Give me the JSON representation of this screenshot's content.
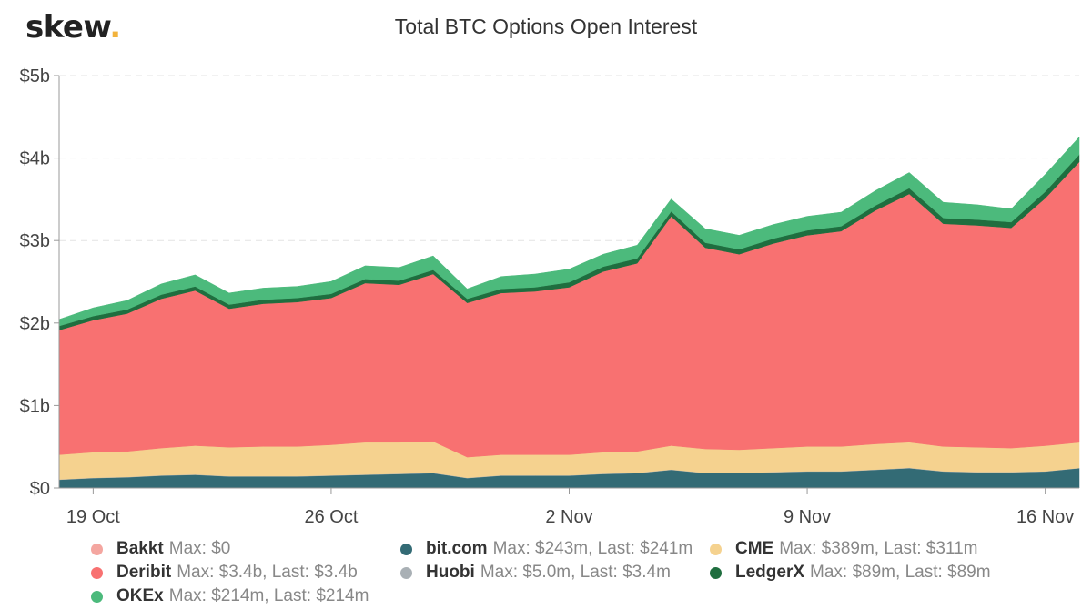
{
  "brand": {
    "name": "skew",
    "dot": "."
  },
  "chart_data": {
    "type": "area",
    "stacked": true,
    "title": "Total BTC Options Open Interest",
    "xlabel": "",
    "ylabel": "",
    "x_start": "2020-10-18",
    "x_ticks": [
      {
        "date": "2020-10-19",
        "label": "19 Oct"
      },
      {
        "date": "2020-10-26",
        "label": "26 Oct"
      },
      {
        "date": "2020-11-02",
        "label": "2 Nov"
      },
      {
        "date": "2020-11-09",
        "label": "9 Nov"
      },
      {
        "date": "2020-11-16",
        "label": "16 Nov"
      }
    ],
    "y_ticks": [
      {
        "value": 0,
        "label": "$0"
      },
      {
        "value": 1,
        "label": "$1b"
      },
      {
        "value": 2,
        "label": "$2b"
      },
      {
        "value": 3,
        "label": "$3b"
      },
      {
        "value": 4,
        "label": "$4b"
      },
      {
        "value": 5,
        "label": "$5b"
      }
    ],
    "ylim": [
      0,
      5
    ],
    "y_unit": "$b",
    "grid": "horizontal dashed",
    "legend_position": "bottom",
    "dates": [
      "2020-10-18",
      "2020-10-19",
      "2020-10-20",
      "2020-10-21",
      "2020-10-22",
      "2020-10-23",
      "2020-10-24",
      "2020-10-25",
      "2020-10-26",
      "2020-10-27",
      "2020-10-28",
      "2020-10-29",
      "2020-10-30",
      "2020-10-31",
      "2020-11-01",
      "2020-11-02",
      "2020-11-03",
      "2020-11-04",
      "2020-11-05",
      "2020-11-06",
      "2020-11-07",
      "2020-11-08",
      "2020-11-09",
      "2020-11-10",
      "2020-11-11",
      "2020-11-12",
      "2020-11-13",
      "2020-11-14",
      "2020-11-15",
      "2020-11-16",
      "2020-11-17"
    ],
    "series": [
      {
        "name": "Bakkt",
        "color": "#f4a6a0",
        "max": "$0",
        "last": "",
        "values": [
          0,
          0,
          0,
          0,
          0,
          0,
          0,
          0,
          0,
          0,
          0,
          0,
          0,
          0,
          0,
          0,
          0,
          0,
          0,
          0,
          0,
          0,
          0,
          0,
          0,
          0,
          0,
          0,
          0,
          0,
          0
        ]
      },
      {
        "name": "bit.com",
        "color": "#336b75",
        "max": "$243m",
        "last": "$241m",
        "values": [
          0.1,
          0.12,
          0.13,
          0.15,
          0.16,
          0.14,
          0.14,
          0.14,
          0.15,
          0.16,
          0.17,
          0.18,
          0.12,
          0.15,
          0.15,
          0.15,
          0.17,
          0.18,
          0.22,
          0.18,
          0.18,
          0.19,
          0.2,
          0.2,
          0.22,
          0.24,
          0.2,
          0.19,
          0.19,
          0.2,
          0.24
        ]
      },
      {
        "name": "Huobi",
        "color": "#a9b0b5",
        "max": "$5.0m",
        "last": "$3.4m",
        "values": [
          0.004,
          0.004,
          0.004,
          0.004,
          0.004,
          0.004,
          0.004,
          0.004,
          0.004,
          0.004,
          0.004,
          0.004,
          0.004,
          0.004,
          0.004,
          0.004,
          0.004,
          0.004,
          0.004,
          0.004,
          0.004,
          0.004,
          0.004,
          0.004,
          0.004,
          0.005,
          0.004,
          0.004,
          0.004,
          0.003,
          0.003
        ]
      },
      {
        "name": "CME",
        "color": "#f5d28f",
        "max": "$389m",
        "last": "$311m",
        "values": [
          0.3,
          0.31,
          0.31,
          0.33,
          0.35,
          0.35,
          0.36,
          0.36,
          0.37,
          0.39,
          0.38,
          0.38,
          0.25,
          0.25,
          0.25,
          0.25,
          0.26,
          0.26,
          0.29,
          0.29,
          0.28,
          0.29,
          0.3,
          0.3,
          0.31,
          0.31,
          0.3,
          0.3,
          0.29,
          0.31,
          0.31
        ]
      },
      {
        "name": "Deribit",
        "color": "#f87171",
        "max": "$3.4b",
        "last": "$3.4b",
        "values": [
          1.51,
          1.6,
          1.67,
          1.81,
          1.88,
          1.68,
          1.73,
          1.75,
          1.78,
          1.93,
          1.91,
          2.03,
          1.87,
          1.96,
          1.98,
          2.03,
          2.19,
          2.28,
          2.78,
          2.44,
          2.37,
          2.48,
          2.56,
          2.61,
          2.83,
          3.01,
          2.7,
          2.69,
          2.67,
          3.0,
          3.4
        ]
      },
      {
        "name": "LedgerX",
        "color": "#1f6e3f",
        "max": "$89m",
        "last": "$89m",
        "values": [
          0.05,
          0.05,
          0.05,
          0.05,
          0.05,
          0.05,
          0.05,
          0.05,
          0.05,
          0.05,
          0.05,
          0.05,
          0.05,
          0.05,
          0.05,
          0.06,
          0.06,
          0.06,
          0.06,
          0.06,
          0.06,
          0.06,
          0.06,
          0.06,
          0.06,
          0.07,
          0.07,
          0.07,
          0.07,
          0.08,
          0.089
        ]
      },
      {
        "name": "OKEx",
        "color": "#4cba7c",
        "max": "$214m",
        "last": "$214m",
        "values": [
          0.08,
          0.1,
          0.11,
          0.13,
          0.14,
          0.14,
          0.14,
          0.14,
          0.15,
          0.16,
          0.16,
          0.17,
          0.12,
          0.15,
          0.16,
          0.16,
          0.15,
          0.16,
          0.15,
          0.17,
          0.17,
          0.17,
          0.17,
          0.17,
          0.18,
          0.19,
          0.19,
          0.18,
          0.16,
          0.21,
          0.214
        ]
      }
    ]
  },
  "legend": {
    "max_label": "Max:",
    "last_label": "Last:",
    "order": [
      "Bakkt",
      "bit.com",
      "CME",
      "Deribit",
      "Huobi",
      "LedgerX",
      "OKEx"
    ]
  }
}
